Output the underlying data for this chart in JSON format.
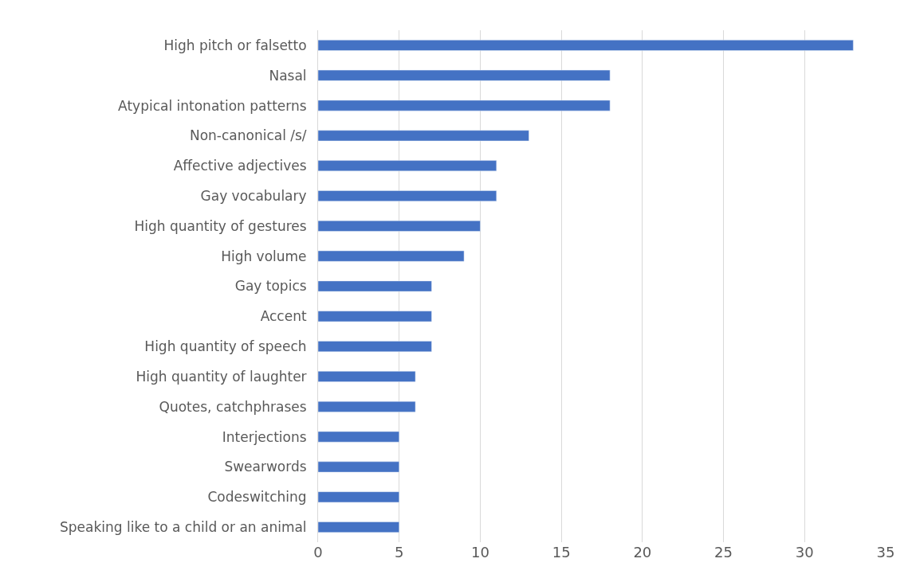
{
  "chart_data": {
    "type": "bar",
    "orientation": "horizontal",
    "categories": [
      "High pitch or falsetto",
      "Nasal",
      "Atypical intonation patterns",
      "Non-canonical /s/",
      "Affective adjectives",
      "Gay vocabulary",
      "High quantity of gestures",
      "High volume",
      "Gay topics",
      "Accent",
      "High quantity of speech",
      "High quantity of laughter",
      "Quotes, catchphrases",
      "Interjections",
      "Swearwords",
      "Codeswitching",
      "Speaking like to a child or an animal"
    ],
    "values": [
      33,
      18,
      18,
      13,
      11,
      11,
      10,
      9,
      7,
      7,
      7,
      6,
      6,
      5,
      5,
      5,
      5
    ],
    "color": "#4472c4",
    "xlim": [
      0,
      35
    ],
    "xticks": [
      0,
      5,
      10,
      15,
      20,
      25,
      30,
      35
    ],
    "grid": "x"
  }
}
